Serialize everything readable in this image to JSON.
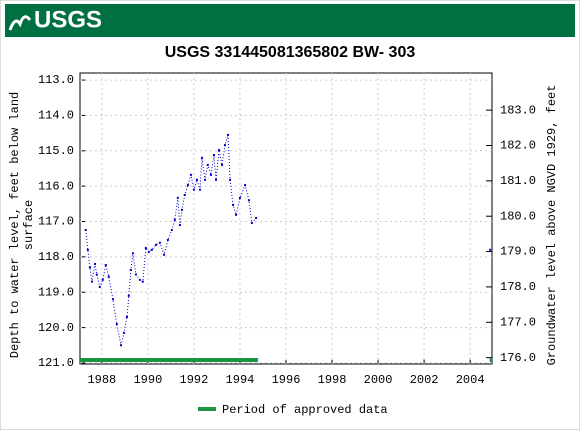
{
  "logo": "USGS",
  "chart_data": {
    "type": "line",
    "title": "USGS 331445081365802 BW- 303",
    "ylabel": [
      "Depth to water level, feet below land",
      "surface"
    ],
    "y2label": "Groundwater level above NGVD 1929, feet",
    "xlim": [
      1987.05,
      2004.95
    ],
    "xticks": [
      1988,
      1990,
      1992,
      1994,
      1996,
      1998,
      2000,
      2002,
      2004
    ],
    "ylim": [
      112.8,
      121.03
    ],
    "yticks": [
      {
        "value": 113,
        "label": "113.0"
      },
      {
        "value": 114,
        "label": "114.0"
      },
      {
        "value": 115,
        "label": "115.0"
      },
      {
        "value": 116,
        "label": "116.0"
      },
      {
        "value": 117,
        "label": "117.0"
      },
      {
        "value": 118,
        "label": "118.0"
      },
      {
        "value": 119,
        "label": "119.0"
      },
      {
        "value": 120,
        "label": "120.0"
      },
      {
        "value": 121,
        "label": "121.0"
      }
    ],
    "y2lim": [
      184.05,
      175.82
    ],
    "y2ticks": [
      {
        "value": 183,
        "label": "183.0"
      },
      {
        "value": 182,
        "label": "182.0"
      },
      {
        "value": 181,
        "label": "181.0"
      },
      {
        "value": 180,
        "label": "180.0"
      },
      {
        "value": 179,
        "label": "179.0"
      },
      {
        "value": 178,
        "label": "178.0"
      },
      {
        "value": 177,
        "label": "177.0"
      },
      {
        "value": 176,
        "label": "176.0"
      }
    ],
    "x": [
      1987.3,
      1987.39,
      1987.48,
      1987.57,
      1987.7,
      1987.78,
      1987.91,
      1988.04,
      1988.17,
      1988.3,
      1988.48,
      1988.65,
      1988.83,
      1988.96,
      1989.09,
      1989.17,
      1989.26,
      1989.35,
      1989.48,
      1989.65,
      1989.78,
      1989.91,
      1990.04,
      1990.17,
      1990.35,
      1990.52,
      1990.7,
      1990.87,
      1991.04,
      1991.17,
      1991.3,
      1991.39,
      1991.48,
      1991.6,
      1991.74,
      1991.87,
      1992.0,
      1992.13,
      1992.26,
      1992.35,
      1992.48,
      1992.6,
      1992.74,
      1992.87,
      1992.96,
      1993.09,
      1993.22,
      1993.35,
      1993.48,
      1993.57,
      1993.7,
      1993.83,
      1994.0,
      1994.22,
      1994.39,
      1994.52,
      1994.7,
      1999.8,
      2004.87
    ],
    "series": [
      {
        "color": "#0000cc",
        "values": [
          117.24,
          117.8,
          118.3,
          118.7,
          118.2,
          118.5,
          118.85,
          118.65,
          118.23,
          118.56,
          119.2,
          119.9,
          120.5,
          120.15,
          119.7,
          119.1,
          118.37,
          117.9,
          118.5,
          118.65,
          118.7,
          117.75,
          117.86,
          117.8,
          117.66,
          117.6,
          117.94,
          117.52,
          117.24,
          116.95,
          116.33,
          117.1,
          116.67,
          116.25,
          115.97,
          115.68,
          116.1,
          115.82,
          116.1,
          115.2,
          115.82,
          115.4,
          115.68,
          115.12,
          115.82,
          114.98,
          115.4,
          114.84,
          114.55,
          115.82,
          116.53,
          116.81,
          116.33,
          115.97,
          116.4,
          117.04,
          116.9,
          null,
          117.8
        ]
      }
    ],
    "approved": {
      "name": "Period of approved data",
      "color": "#1a9641",
      "periods": [
        [
          1987.05,
          1994.78
        ],
        [
          2004.85,
          2004.95
        ]
      ]
    }
  }
}
